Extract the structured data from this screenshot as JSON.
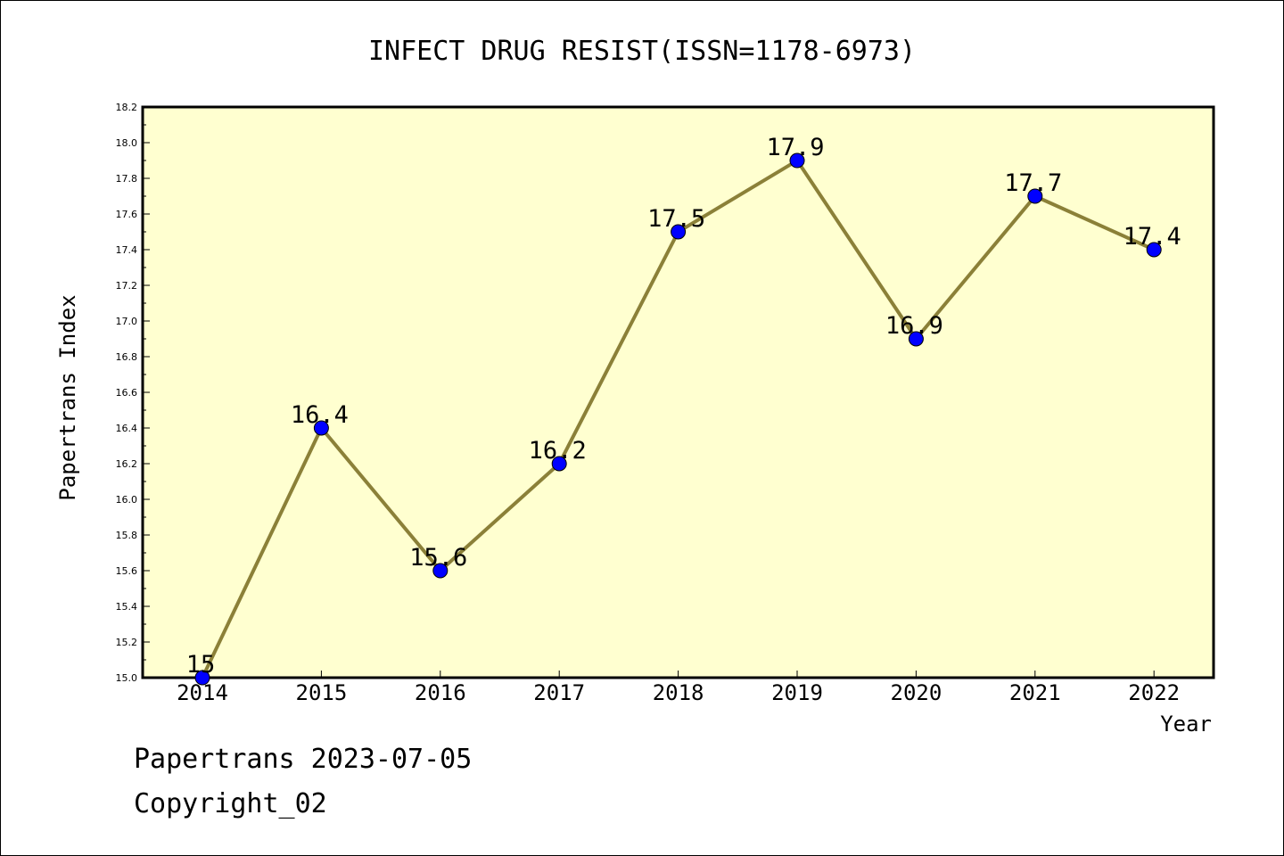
{
  "footer": {
    "line1": "Papertrans 2023-07-05",
    "line2": "Copyright_02"
  },
  "chart_data": {
    "type": "line",
    "title": "INFECT DRUG RESIST(ISSN=1178-6973)",
    "xlabel": "Year",
    "ylabel": "Papertrans Index",
    "categories": [
      "2014",
      "2015",
      "2016",
      "2017",
      "2018",
      "2019",
      "2020",
      "2021",
      "2022"
    ],
    "series": [
      {
        "values": [
          15,
          16.4,
          15.6,
          16.2,
          17.5,
          17.9,
          16.9,
          17.7,
          17.4
        ],
        "labels": [
          "15",
          "16.4",
          "15.6",
          "16.2",
          "17.5",
          "17.9",
          "16.9",
          "17.7",
          "17.4"
        ]
      }
    ],
    "ylim": [
      15.0,
      18.2
    ],
    "yticks": [
      "15.0",
      "15.2",
      "15.4",
      "15.6",
      "15.8",
      "16.0",
      "16.2",
      "16.4",
      "16.6",
      "16.8",
      "17.0",
      "17.2",
      "17.4",
      "17.6",
      "17.8",
      "18.0",
      "18.2"
    ],
    "grid": false,
    "legend": "none",
    "colors": {
      "plot_background": "#ffffd0",
      "line": "#8b8038",
      "marker": "#0000ff"
    }
  }
}
